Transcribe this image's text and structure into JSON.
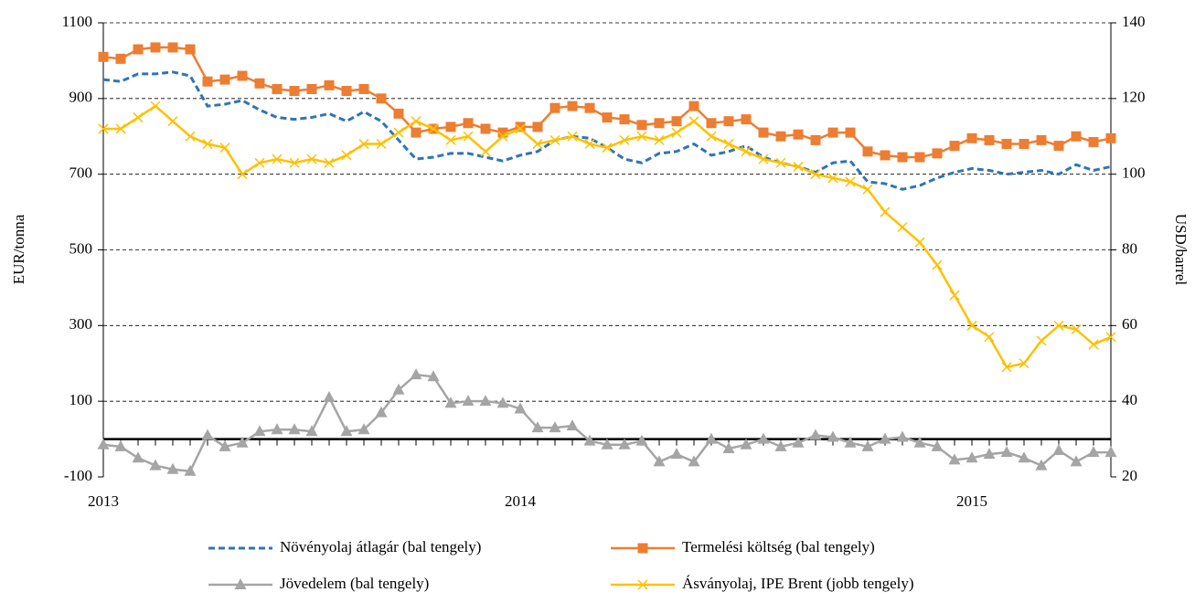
{
  "chart_data": {
    "type": "line",
    "ylabel": "EUR/tonna",
    "y2label": "USD/barrel",
    "categories": [
      "2013",
      null,
      null,
      null,
      null,
      null,
      null,
      null,
      null,
      null,
      null,
      null,
      null,
      null,
      null,
      null,
      null,
      null,
      null,
      null,
      null,
      null,
      null,
      null,
      "2014",
      null,
      null,
      null,
      null,
      null,
      null,
      null,
      null,
      null,
      null,
      null,
      null,
      null,
      null,
      null,
      null,
      null,
      null,
      null,
      null,
      null,
      null,
      null,
      null,
      null,
      "2015",
      null,
      null,
      null,
      null,
      null,
      null,
      null,
      null
    ],
    "series": [
      {
        "name": "Növényolaj átlagár (bal tengely)",
        "color": "#2e75b6",
        "style": "dashed",
        "marker": "none",
        "values": [
          950,
          945,
          965,
          965,
          970,
          960,
          880,
          885,
          895,
          870,
          850,
          845,
          850,
          860,
          840,
          865,
          840,
          790,
          740,
          745,
          755,
          755,
          745,
          735,
          750,
          760,
          790,
          800,
          795,
          770,
          740,
          730,
          755,
          760,
          780,
          750,
          760,
          775,
          745,
          730,
          720,
          705,
          730,
          735,
          680,
          675,
          660,
          670,
          690,
          705,
          715,
          710,
          700,
          705,
          710,
          700,
          725,
          710,
          720
        ]
      },
      {
        "name": "Termelési költség (bal tengely)",
        "color": "#ed7d31",
        "style": "solid",
        "marker": "square",
        "values": [
          1010,
          1005,
          1030,
          1035,
          1035,
          1030,
          945,
          950,
          960,
          940,
          925,
          920,
          925,
          935,
          920,
          925,
          900,
          860,
          810,
          820,
          825,
          835,
          820,
          810,
          825,
          825,
          875,
          880,
          875,
          850,
          845,
          830,
          835,
          840,
          880,
          835,
          840,
          845,
          810,
          800,
          805,
          790,
          810,
          810,
          760,
          750,
          745,
          745,
          755,
          775,
          795,
          790,
          780,
          780,
          790,
          775,
          800,
          785,
          795
        ]
      },
      {
        "name": "Jövedelem (bal tengely)",
        "color": "#a5a5a5",
        "style": "solid",
        "marker": "triangle",
        "values": [
          -15,
          -20,
          -50,
          -70,
          -80,
          -85,
          10,
          -20,
          -10,
          20,
          25,
          25,
          20,
          110,
          20,
          25,
          70,
          130,
          170,
          165,
          95,
          100,
          100,
          95,
          80,
          30,
          30,
          35,
          -5,
          -15,
          -15,
          -5,
          -60,
          -40,
          -60,
          0,
          -25,
          -15,
          0,
          -20,
          -10,
          10,
          5,
          -10,
          -20,
          0,
          5,
          -10,
          -20,
          -55,
          -50,
          -40,
          -35,
          -50,
          -70,
          -30,
          -60,
          -35,
          -35
        ]
      },
      {
        "name": "Ásványolaj, IPE Brent (jobb tengely)",
        "color": "#ffc000",
        "style": "solid",
        "marker": "x",
        "axis": "y2",
        "values": [
          112,
          112,
          115,
          118,
          114,
          110,
          108,
          107,
          100,
          103,
          104,
          103,
          104,
          103,
          105,
          108,
          108,
          111,
          114,
          112,
          109,
          110,
          106,
          110,
          112,
          108,
          109,
          110,
          108,
          107,
          109,
          110,
          109,
          111,
          114,
          110,
          108,
          106,
          104,
          103,
          102,
          100,
          99,
          98,
          96,
          90,
          86,
          82,
          76,
          68,
          60,
          57,
          49,
          50,
          56,
          60,
          59,
          55,
          57
        ]
      }
    ],
    "ylim": [
      -100,
      1100
    ],
    "yticks": [
      -100,
      100,
      300,
      500,
      700,
      900,
      1100
    ],
    "y2lim": [
      20,
      140
    ],
    "y2ticks": [
      20,
      40,
      60,
      80,
      100,
      120,
      140
    ],
    "grid": true,
    "legend": "bottom"
  }
}
